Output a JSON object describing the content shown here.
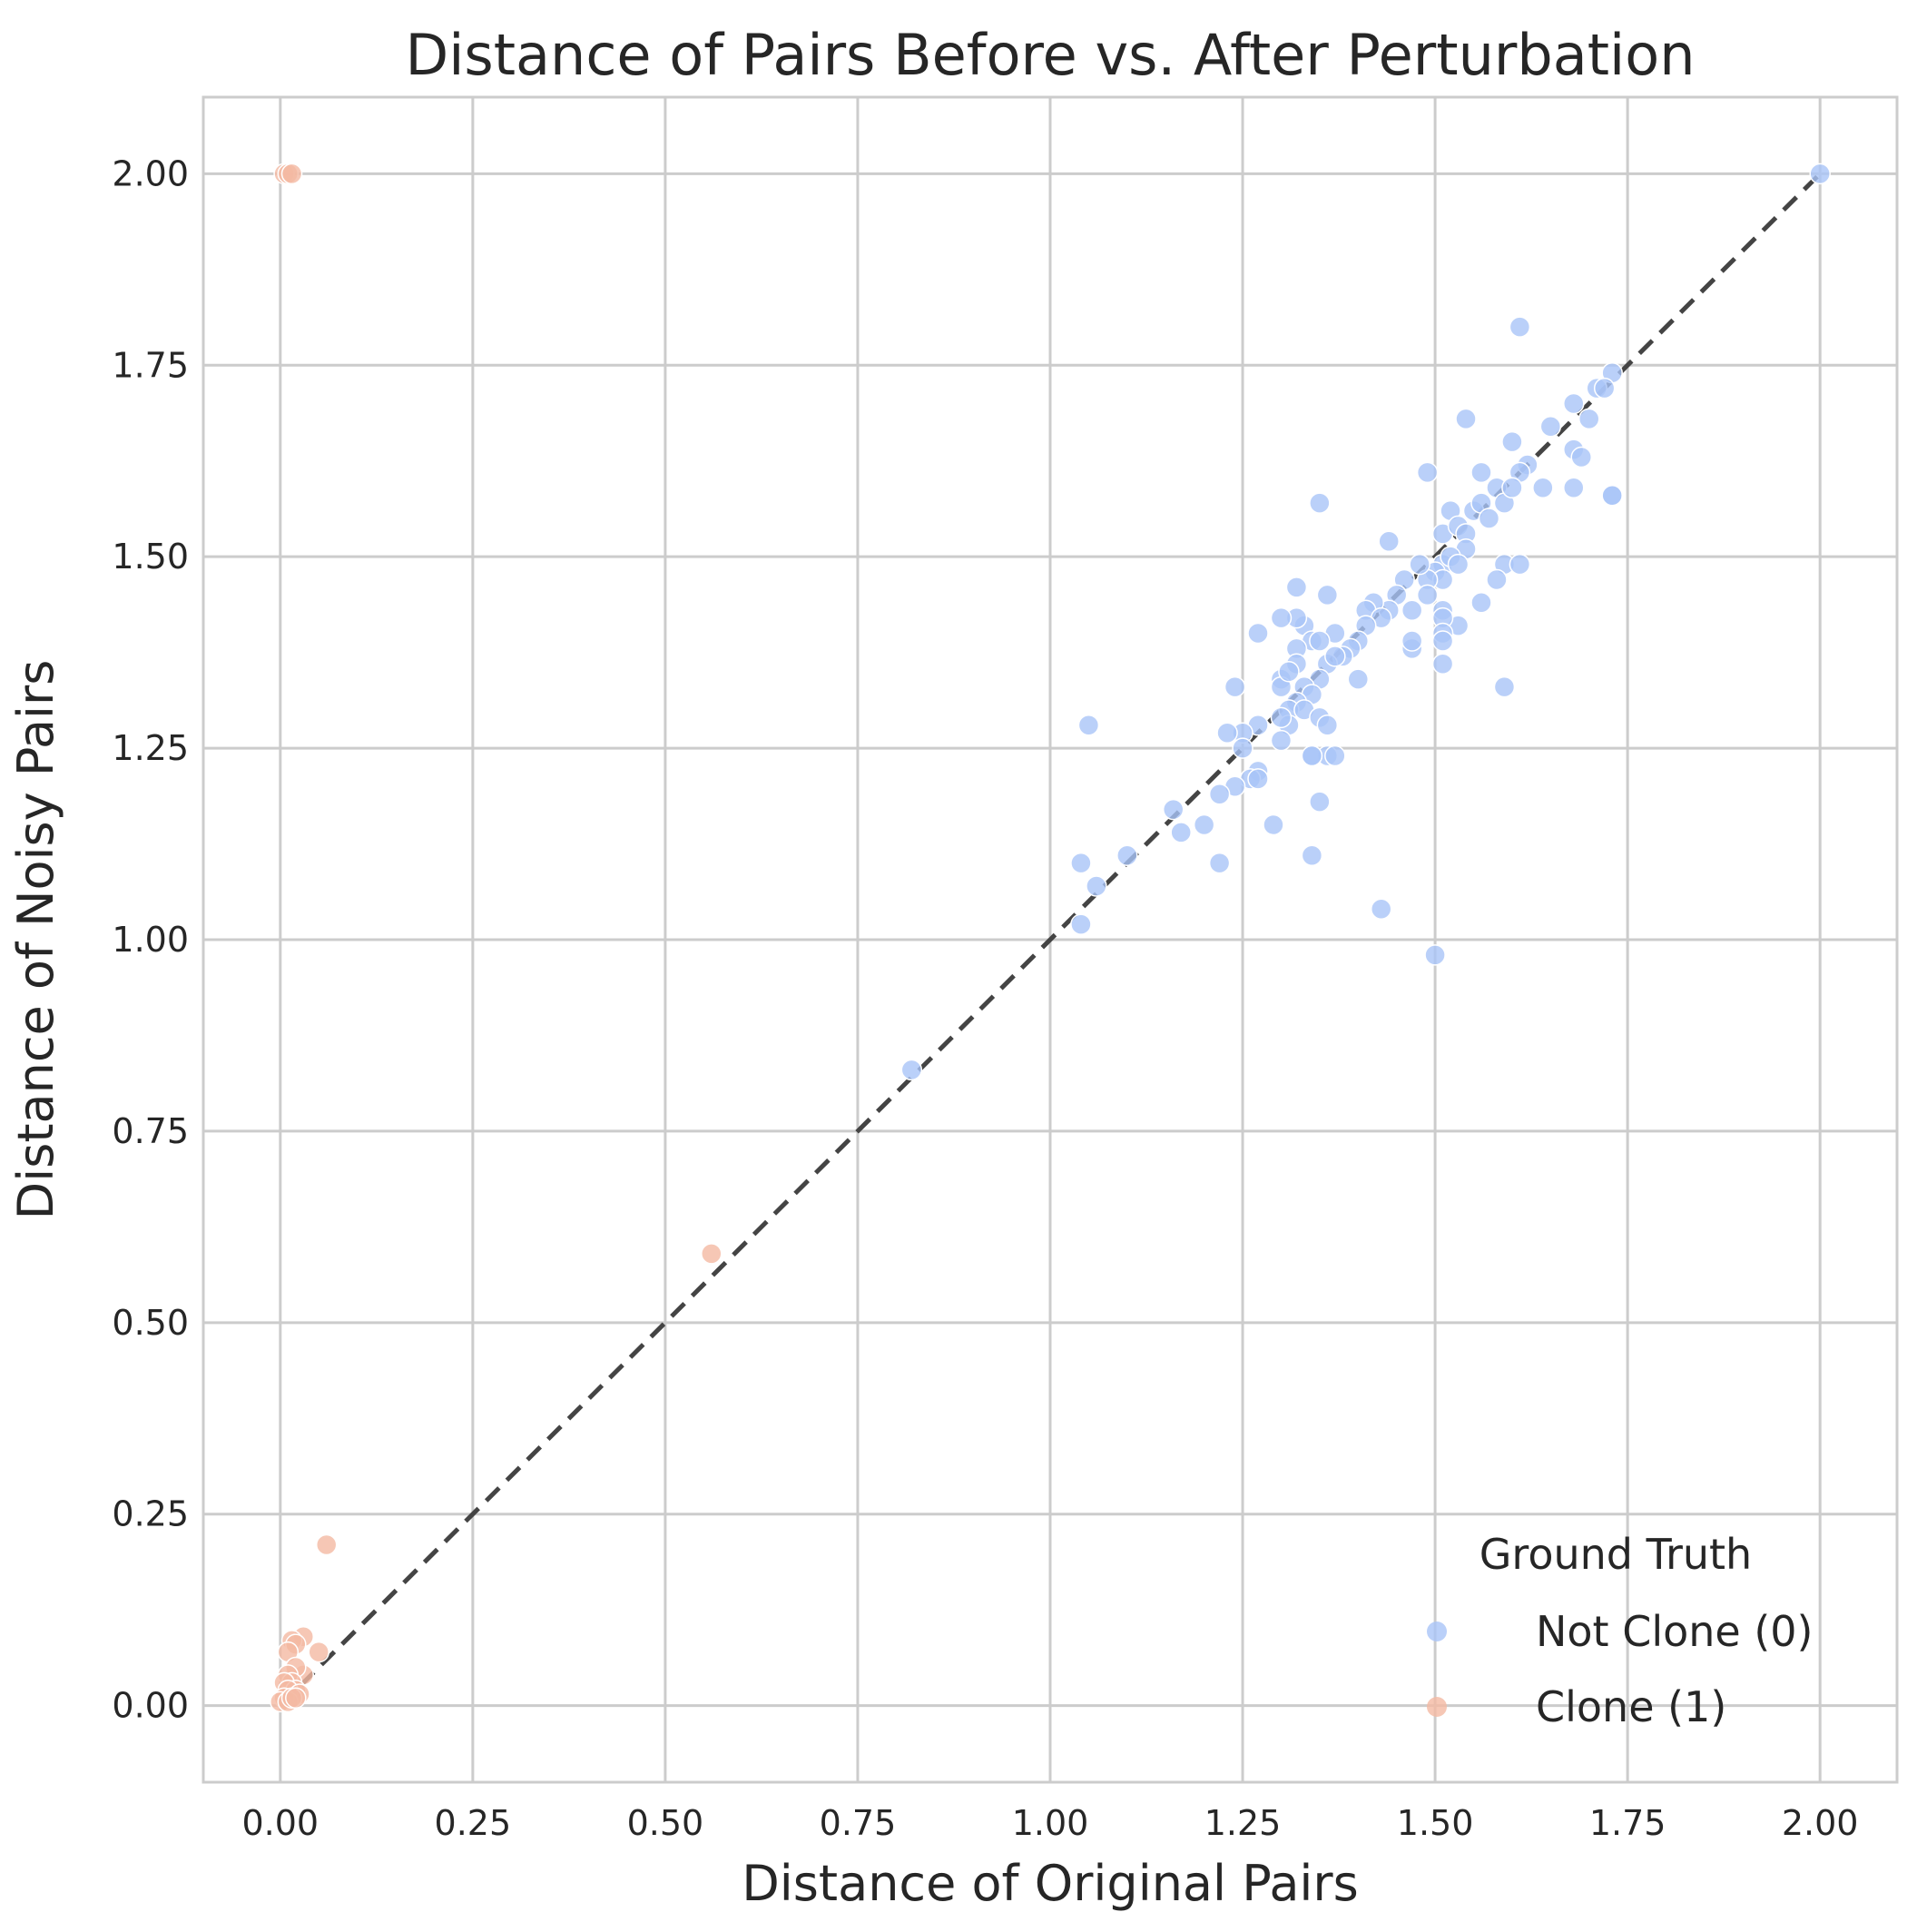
{
  "chart_data": {
    "type": "scatter",
    "title": "Distance of Pairs Before vs. After Perturbation",
    "xlabel": "Distance of Original Pairs",
    "ylabel": "Distance of Noisy Pairs",
    "xlim": [
      -0.1,
      2.1
    ],
    "ylim": [
      -0.1,
      2.1
    ],
    "xticks": [
      "0.00",
      "0.25",
      "0.50",
      "0.75",
      "1.00",
      "1.25",
      "1.50",
      "1.75",
      "2.00"
    ],
    "yticks": [
      "0.00",
      "0.25",
      "0.50",
      "0.75",
      "1.00",
      "1.25",
      "1.50",
      "1.75",
      "2.00"
    ],
    "grid": true,
    "legend": {
      "title": "Ground Truth",
      "placement": "bottom-right"
    },
    "reference_line": {
      "from": [
        0,
        0
      ],
      "to": [
        2,
        2
      ],
      "style": "dashed",
      "color": "#444444"
    },
    "series": [
      {
        "name": "Not Clone (0)",
        "color": "#a9c4f7",
        "points": [
          [
            2.0,
            2.0
          ],
          [
            1.61,
            1.8
          ],
          [
            1.73,
            1.74
          ],
          [
            1.71,
            1.72
          ],
          [
            1.72,
            1.72
          ],
          [
            1.68,
            1.7
          ],
          [
            1.7,
            1.68
          ],
          [
            1.65,
            1.67
          ],
          [
            1.54,
            1.68
          ],
          [
            1.6,
            1.65
          ],
          [
            1.68,
            1.64
          ],
          [
            1.69,
            1.63
          ],
          [
            1.64,
            1.59
          ],
          [
            1.68,
            1.59
          ],
          [
            1.73,
            1.58
          ],
          [
            1.73,
            1.58
          ],
          [
            1.62,
            1.62
          ],
          [
            1.61,
            1.61
          ],
          [
            1.56,
            1.61
          ],
          [
            1.58,
            1.59
          ],
          [
            1.59,
            1.57
          ],
          [
            1.6,
            1.59
          ],
          [
            1.49,
            1.61
          ],
          [
            1.35,
            1.57
          ],
          [
            1.52,
            1.56
          ],
          [
            1.55,
            1.56
          ],
          [
            1.56,
            1.57
          ],
          [
            1.57,
            1.55
          ],
          [
            1.51,
            1.53
          ],
          [
            1.53,
            1.54
          ],
          [
            1.54,
            1.53
          ],
          [
            1.54,
            1.51
          ],
          [
            1.44,
            1.52
          ],
          [
            1.51,
            1.49
          ],
          [
            1.52,
            1.5
          ],
          [
            1.53,
            1.49
          ],
          [
            1.5,
            1.48
          ],
          [
            1.51,
            1.47
          ],
          [
            1.49,
            1.47
          ],
          [
            1.48,
            1.49
          ],
          [
            1.46,
            1.47
          ],
          [
            1.59,
            1.49
          ],
          [
            1.61,
            1.49
          ],
          [
            1.58,
            1.47
          ],
          [
            1.56,
            1.44
          ],
          [
            1.53,
            1.41
          ],
          [
            1.47,
            1.43
          ],
          [
            1.51,
            1.43
          ],
          [
            1.51,
            1.42
          ],
          [
            1.49,
            1.45
          ],
          [
            1.45,
            1.45
          ],
          [
            1.44,
            1.43
          ],
          [
            1.42,
            1.44
          ],
          [
            1.41,
            1.43
          ],
          [
            1.43,
            1.42
          ],
          [
            1.51,
            1.4
          ],
          [
            1.51,
            1.39
          ],
          [
            1.47,
            1.38
          ],
          [
            1.47,
            1.39
          ],
          [
            1.51,
            1.36
          ],
          [
            1.59,
            1.33
          ],
          [
            1.41,
            1.41
          ],
          [
            1.4,
            1.39
          ],
          [
            1.39,
            1.38
          ],
          [
            1.38,
            1.37
          ],
          [
            1.37,
            1.4
          ],
          [
            1.36,
            1.45
          ],
          [
            1.33,
            1.41
          ],
          [
            1.32,
            1.42
          ],
          [
            1.32,
            1.46
          ],
          [
            1.3,
            1.42
          ],
          [
            1.34,
            1.39
          ],
          [
            1.35,
            1.39
          ],
          [
            1.36,
            1.36
          ],
          [
            1.35,
            1.34
          ],
          [
            1.4,
            1.34
          ],
          [
            1.37,
            1.37
          ],
          [
            1.32,
            1.38
          ],
          [
            1.32,
            1.36
          ],
          [
            1.3,
            1.34
          ],
          [
            1.3,
            1.33
          ],
          [
            1.31,
            1.35
          ],
          [
            1.33,
            1.33
          ],
          [
            1.34,
            1.32
          ],
          [
            1.32,
            1.31
          ],
          [
            1.31,
            1.3
          ],
          [
            1.31,
            1.28
          ],
          [
            1.3,
            1.29
          ],
          [
            1.33,
            1.3
          ],
          [
            1.35,
            1.29
          ],
          [
            1.36,
            1.28
          ],
          [
            1.3,
            1.26
          ],
          [
            1.27,
            1.28
          ],
          [
            1.25,
            1.27
          ],
          [
            1.23,
            1.27
          ],
          [
            1.24,
            1.33
          ],
          [
            1.27,
            1.4
          ],
          [
            1.36,
            1.24
          ],
          [
            1.37,
            1.24
          ],
          [
            1.34,
            1.24
          ],
          [
            1.34,
            1.24
          ],
          [
            1.25,
            1.25
          ],
          [
            1.27,
            1.22
          ],
          [
            1.26,
            1.21
          ],
          [
            1.27,
            1.21
          ],
          [
            1.24,
            1.2
          ],
          [
            1.22,
            1.19
          ],
          [
            1.35,
            1.18
          ],
          [
            1.16,
            1.17
          ],
          [
            1.17,
            1.14
          ],
          [
            1.2,
            1.15
          ],
          [
            1.29,
            1.15
          ],
          [
            1.22,
            1.1
          ],
          [
            1.34,
            1.11
          ],
          [
            1.1,
            1.11
          ],
          [
            1.06,
            1.07
          ],
          [
            1.04,
            1.1
          ],
          [
            1.05,
            1.28
          ],
          [
            1.43,
            1.04
          ],
          [
            1.04,
            1.02
          ],
          [
            1.5,
            0.98
          ],
          [
            0.82,
            0.83
          ]
        ]
      },
      {
        "name": "Clone (1)",
        "color": "#f4b9a2",
        "points": [
          [
            0.005,
            2.0
          ],
          [
            0.01,
            2.0
          ],
          [
            0.015,
            2.0
          ],
          [
            0.56,
            0.59
          ],
          [
            0.06,
            0.21
          ],
          [
            0.03,
            0.09
          ],
          [
            0.015,
            0.085
          ],
          [
            0.02,
            0.08
          ],
          [
            0.01,
            0.07
          ],
          [
            0.05,
            0.07
          ],
          [
            0.03,
            0.04
          ],
          [
            0.02,
            0.05
          ],
          [
            0.01,
            0.04
          ],
          [
            0.015,
            0.03
          ],
          [
            0.005,
            0.03
          ],
          [
            0.02,
            0.02
          ],
          [
            0.01,
            0.02
          ],
          [
            0.025,
            0.015
          ],
          [
            0.005,
            0.01
          ],
          [
            0.0,
            0.005
          ],
          [
            0.01,
            0.005
          ],
          [
            0.015,
            0.01
          ],
          [
            0.02,
            0.01
          ]
        ]
      }
    ]
  }
}
